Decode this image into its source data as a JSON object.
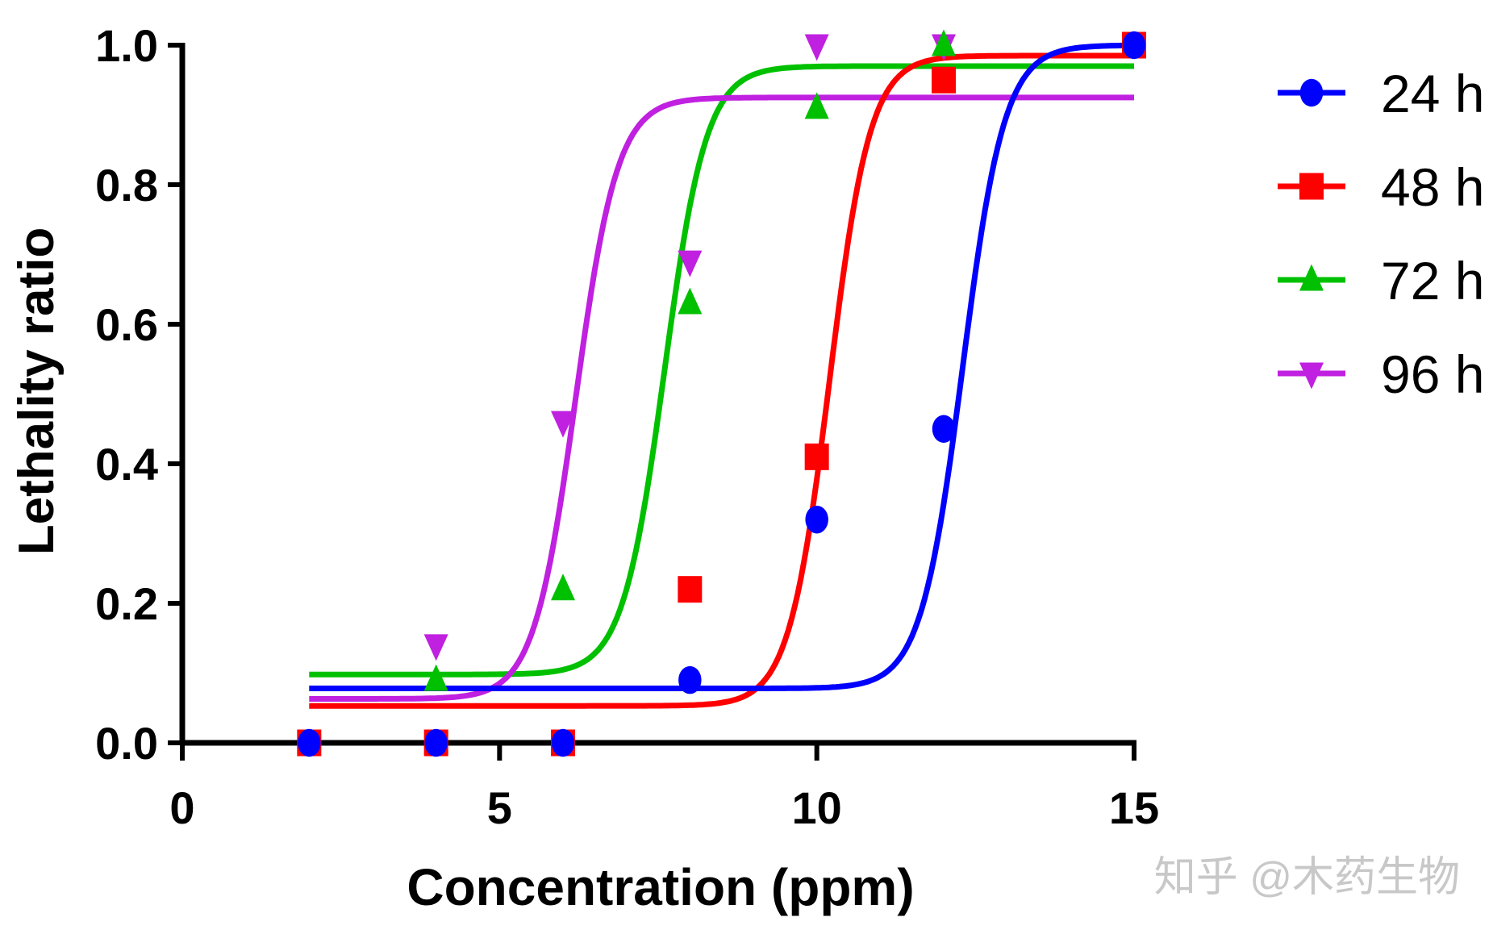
{
  "chart_data": {
    "type": "scatter",
    "title": "",
    "xlabel": "Concentration (ppm)",
    "ylabel": "Lethality ratio",
    "xlim": [
      0,
      15
    ],
    "ylim": [
      0,
      1.0
    ],
    "xticks": [
      "0",
      "5",
      "10",
      "15"
    ],
    "yticks": [
      "0.0",
      "0.2",
      "0.4",
      "0.6",
      "0.8",
      "1.0"
    ],
    "grid": false,
    "legend_position": "right",
    "series": [
      {
        "name": "24 h",
        "color": "#0000ff",
        "marker": "circle",
        "x": [
          2,
          4,
          6,
          8,
          10,
          12,
          15
        ],
        "y": [
          0,
          0,
          0,
          0.09,
          0.32,
          0.45,
          1.0
        ],
        "fit": {
          "bottom": 0.078,
          "top": 1.0,
          "ec50": 12.3,
          "scale": 0.33
        }
      },
      {
        "name": "48 h",
        "color": "#ff0000",
        "marker": "square",
        "x": [
          2,
          4,
          6,
          8,
          10,
          12,
          15
        ],
        "y": [
          0,
          0,
          0,
          0.22,
          0.41,
          0.95,
          1.0
        ],
        "fit": {
          "bottom": 0.053,
          "top": 0.985,
          "ec50": 10.2,
          "scale": 0.32
        }
      },
      {
        "name": "72 h",
        "color": "#00c000",
        "marker": "triangle-up",
        "x": [
          4,
          6,
          8,
          10,
          12
        ],
        "y": [
          0.09,
          0.22,
          0.63,
          0.91,
          1.0
        ],
        "fit": {
          "bottom": 0.098,
          "top": 0.97,
          "ec50": 7.6,
          "scale": 0.33
        }
      },
      {
        "name": "96 h",
        "color": "#c020e0",
        "marker": "triangle-down",
        "x": [
          4,
          6,
          8,
          10,
          12
        ],
        "y": [
          0.14,
          0.46,
          0.69,
          1.0,
          1.0
        ],
        "fit": {
          "bottom": 0.063,
          "top": 0.925,
          "ec50": 6.2,
          "scale": 0.33
        }
      }
    ]
  },
  "watermark": "知乎 @木药生物"
}
